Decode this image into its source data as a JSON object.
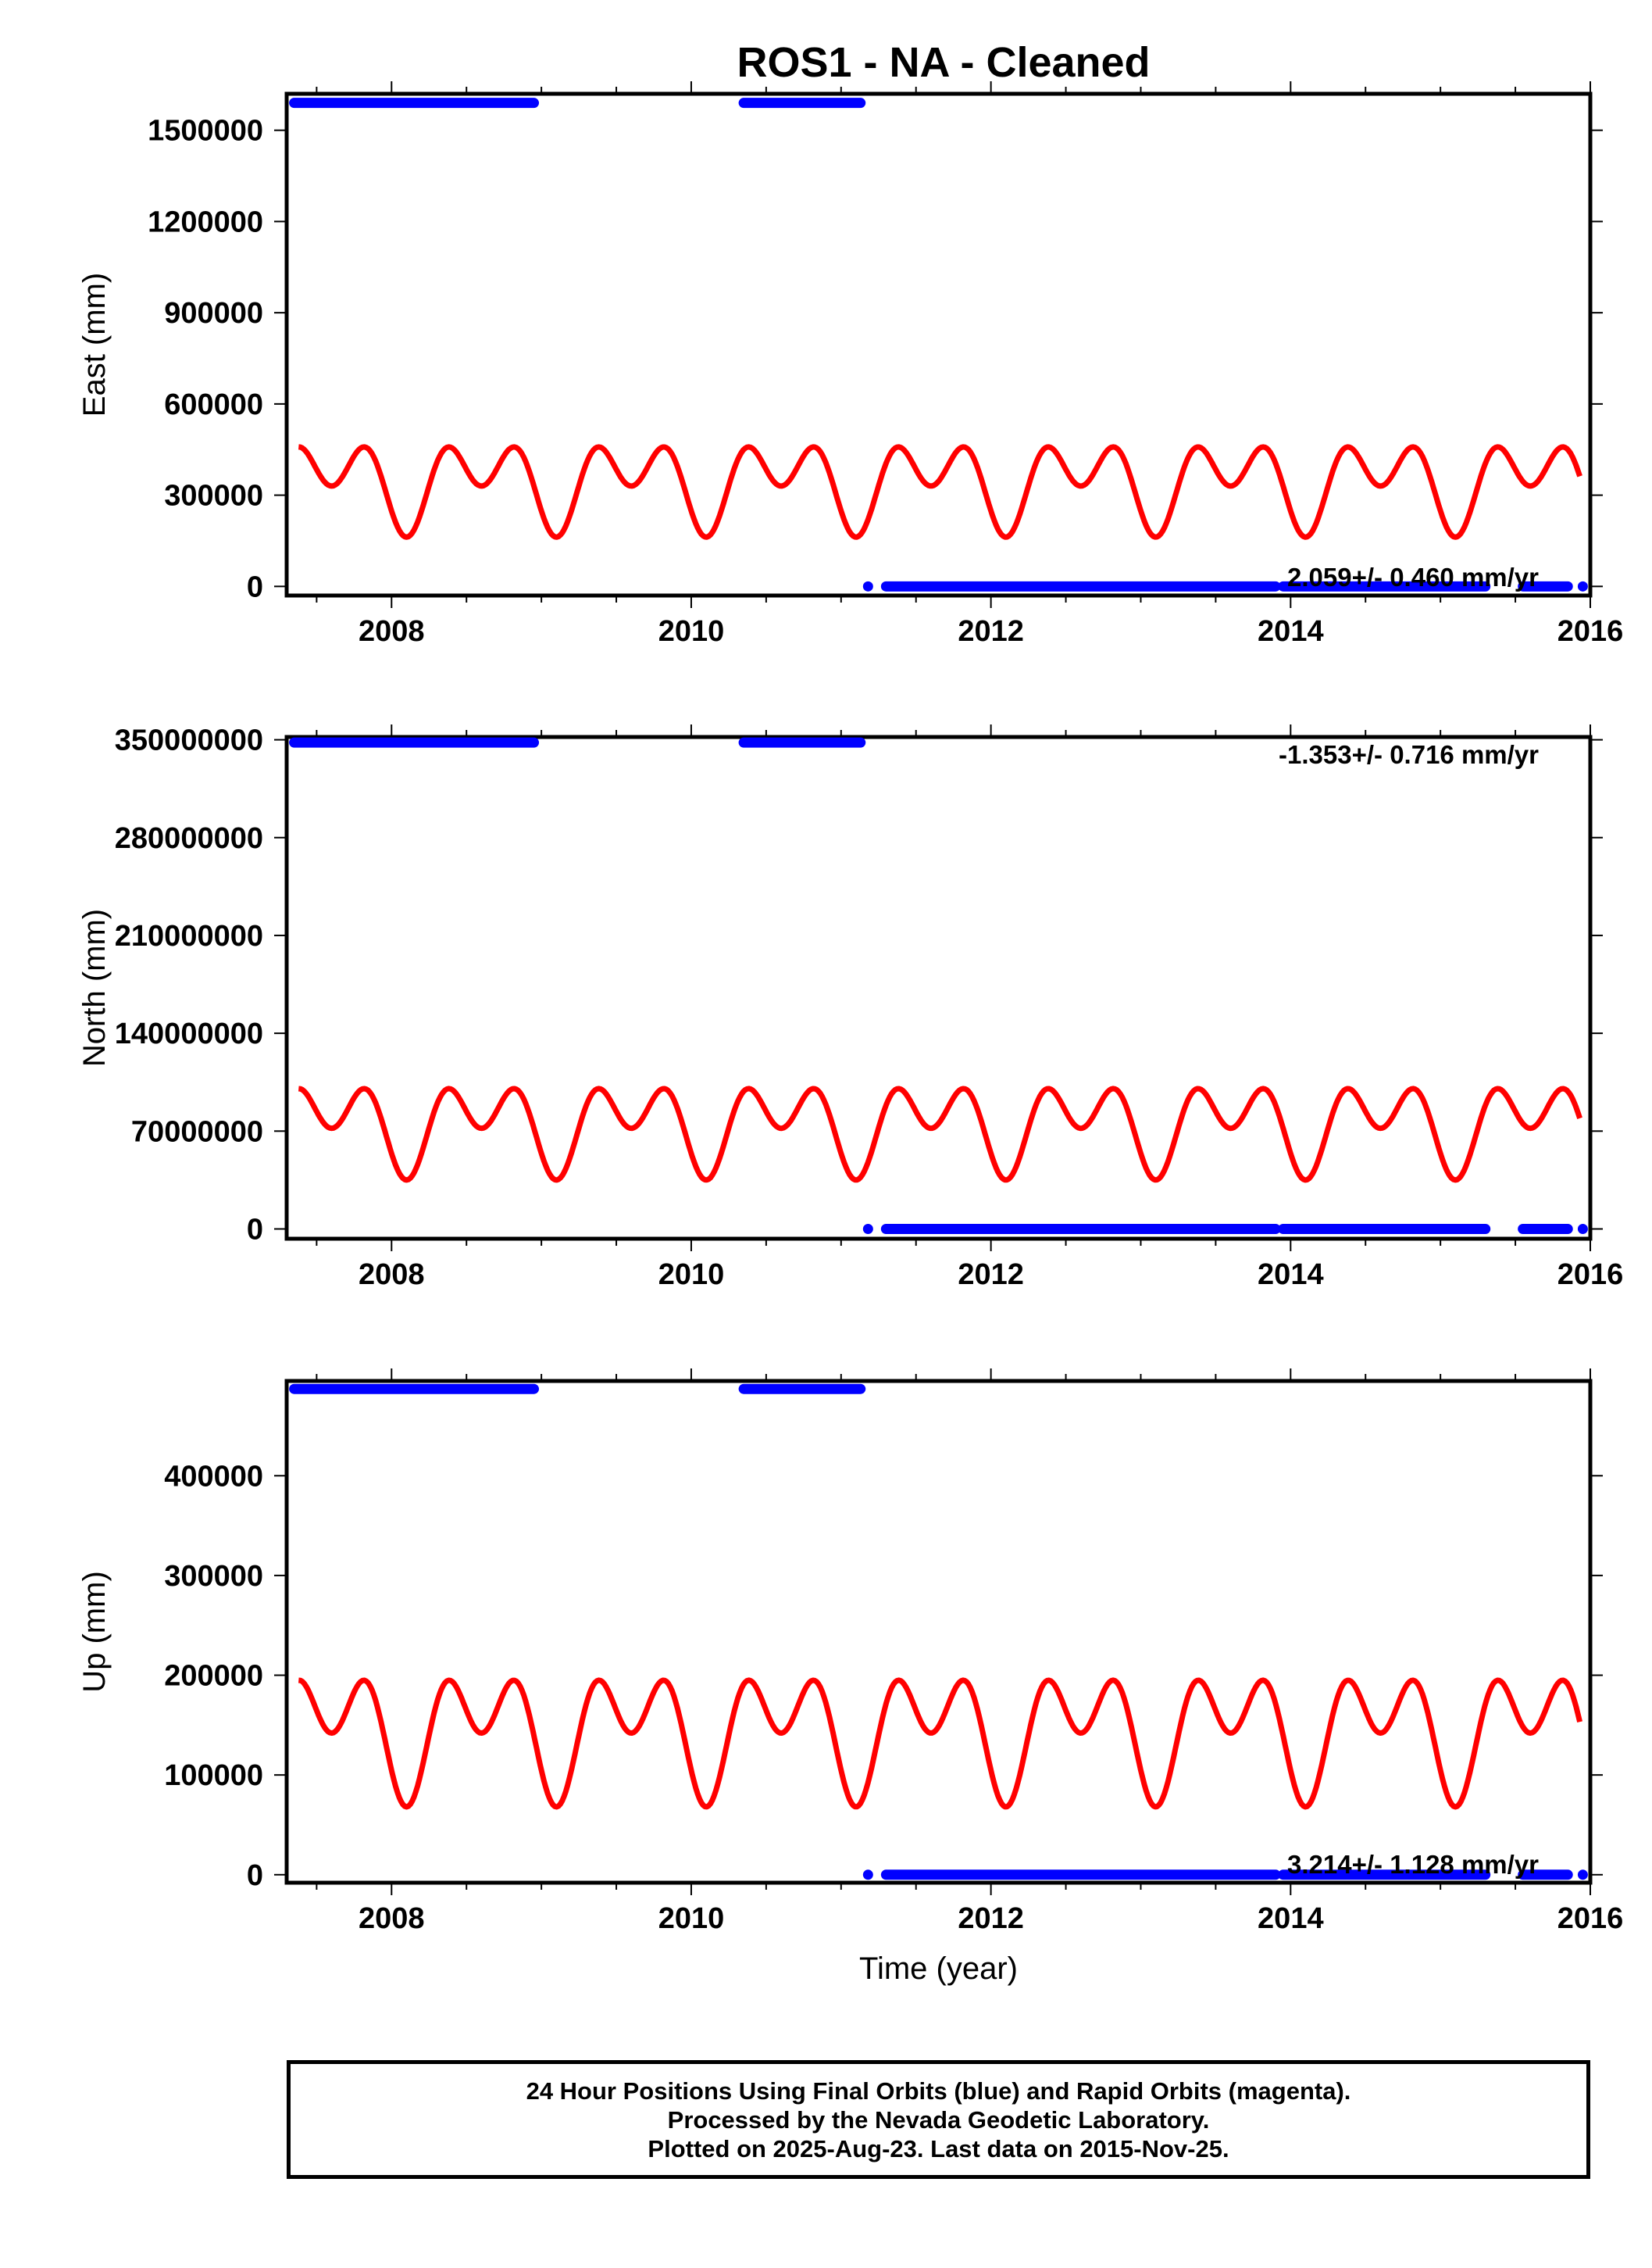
{
  "title": "ROS1  - NA - Cleaned",
  "colors": {
    "final_orbits": "#0000ff",
    "model": "#ff0000",
    "frame": "#000000"
  },
  "chart_data": [
    {
      "type": "scatter",
      "panel": "east",
      "ylabel": "East (mm)",
      "xlabel": "",
      "xlim": [
        2007.3,
        2016.0
      ],
      "ylim": [
        -30000,
        1620000
      ],
      "xticks": [
        2008,
        2010,
        2012,
        2014,
        2016
      ],
      "xtick_labels": [
        "2008",
        "2010",
        "2012",
        "2014",
        "2016"
      ],
      "yticks": [
        0,
        300000,
        600000,
        900000,
        1200000,
        1500000
      ],
      "ytick_labels": [
        "0",
        "300000",
        "600000",
        "900000",
        "1200000",
        "1500000"
      ],
      "rate_text": "2.059+/- 0.460 mm/yr",
      "rate_position": "bottom-right",
      "final_orbit_segments": [
        {
          "x0": 2007.35,
          "x1": 2008.95,
          "y": 1590000
        },
        {
          "x0": 2010.35,
          "x1": 2011.13,
          "y": 1590000
        },
        {
          "x0": 2011.3,
          "x1": 2013.9,
          "y": 0
        },
        {
          "x0": 2013.95,
          "x1": 2015.3,
          "y": 0
        },
        {
          "x0": 2015.55,
          "x1": 2015.85,
          "y": 0
        }
      ],
      "final_orbit_points": [
        {
          "x": 2011.18,
          "y": 0
        },
        {
          "x": 2015.95,
          "y": 0
        }
      ],
      "model": {
        "x0": 2007.38,
        "x1": 2015.93,
        "offset": 348000,
        "annual_amp": 84000,
        "semiannual_amp": 102000,
        "phase_ref": 2008.1
      }
    },
    {
      "type": "scatter",
      "panel": "north",
      "ylabel": "North (mm)",
      "xlabel": "",
      "xlim": [
        2007.3,
        2016.0
      ],
      "ylim": [
        -7000000,
        352000000
      ],
      "xticks": [
        2008,
        2010,
        2012,
        2014,
        2016
      ],
      "xtick_labels": [
        "2008",
        "2010",
        "2012",
        "2014",
        "2016"
      ],
      "yticks": [
        0,
        70000000,
        140000000,
        210000000,
        280000000,
        350000000
      ],
      "ytick_labels": [
        "0",
        "70000000",
        "140000000",
        "210000000",
        "280000000",
        "350000000"
      ],
      "rate_text": "-1.353+/- 0.716 mm/yr",
      "rate_position": "top-right",
      "final_orbit_segments": [
        {
          "x0": 2007.35,
          "x1": 2008.95,
          "y": 348000000
        },
        {
          "x0": 2010.35,
          "x1": 2011.13,
          "y": 348000000
        },
        {
          "x0": 2011.3,
          "x1": 2013.9,
          "y": 0
        },
        {
          "x0": 2013.95,
          "x1": 2015.3,
          "y": 0
        },
        {
          "x0": 2015.55,
          "x1": 2015.85,
          "y": 0
        }
      ],
      "final_orbit_points": [
        {
          "x": 2011.18,
          "y": 0
        },
        {
          "x": 2015.95,
          "y": 0
        }
      ],
      "model": {
        "x0": 2007.38,
        "x1": 2015.93,
        "offset": 76000000,
        "annual_amp": 18500000,
        "semiannual_amp": 22500000,
        "phase_ref": 2008.1
      }
    },
    {
      "type": "scatter",
      "panel": "up",
      "ylabel": "Up (mm)",
      "xlabel": "Time (year)",
      "xlim": [
        2007.3,
        2016.0
      ],
      "ylim": [
        -8000,
        495000
      ],
      "xticks": [
        2008,
        2010,
        2012,
        2014,
        2016
      ],
      "xtick_labels": [
        "2008",
        "2010",
        "2012",
        "2014",
        "2016"
      ],
      "yticks": [
        0,
        100000,
        200000,
        300000,
        400000
      ],
      "ytick_labels": [
        "0",
        "100000",
        "200000",
        "300000",
        "400000"
      ],
      "rate_text": "3.214+/- 1.128 mm/yr",
      "rate_position": "bottom-right",
      "final_orbit_segments": [
        {
          "x0": 2007.35,
          "x1": 2008.95,
          "y": 487000
        },
        {
          "x0": 2010.35,
          "x1": 2011.13,
          "y": 487000
        },
        {
          "x0": 2011.3,
          "x1": 2013.9,
          "y": 0
        },
        {
          "x0": 2013.95,
          "x1": 2015.3,
          "y": 0
        },
        {
          "x0": 2015.55,
          "x1": 2015.85,
          "y": 0
        }
      ],
      "final_orbit_points": [
        {
          "x": 2011.18,
          "y": 0
        },
        {
          "x": 2015.95,
          "y": 0
        }
      ],
      "model": {
        "x0": 2007.38,
        "x1": 2015.93,
        "offset": 148000,
        "annual_amp": 37000,
        "semiannual_amp": 43000,
        "phase_ref": 2008.1
      }
    }
  ],
  "footer": {
    "line1": "24 Hour Positions Using Final Orbits (blue) and Rapid Orbits (magenta).",
    "line2": "Processed by the Nevada Geodetic Laboratory.",
    "line3": "Plotted on 2025-Aug-23. Last data on 2015-Nov-25."
  }
}
